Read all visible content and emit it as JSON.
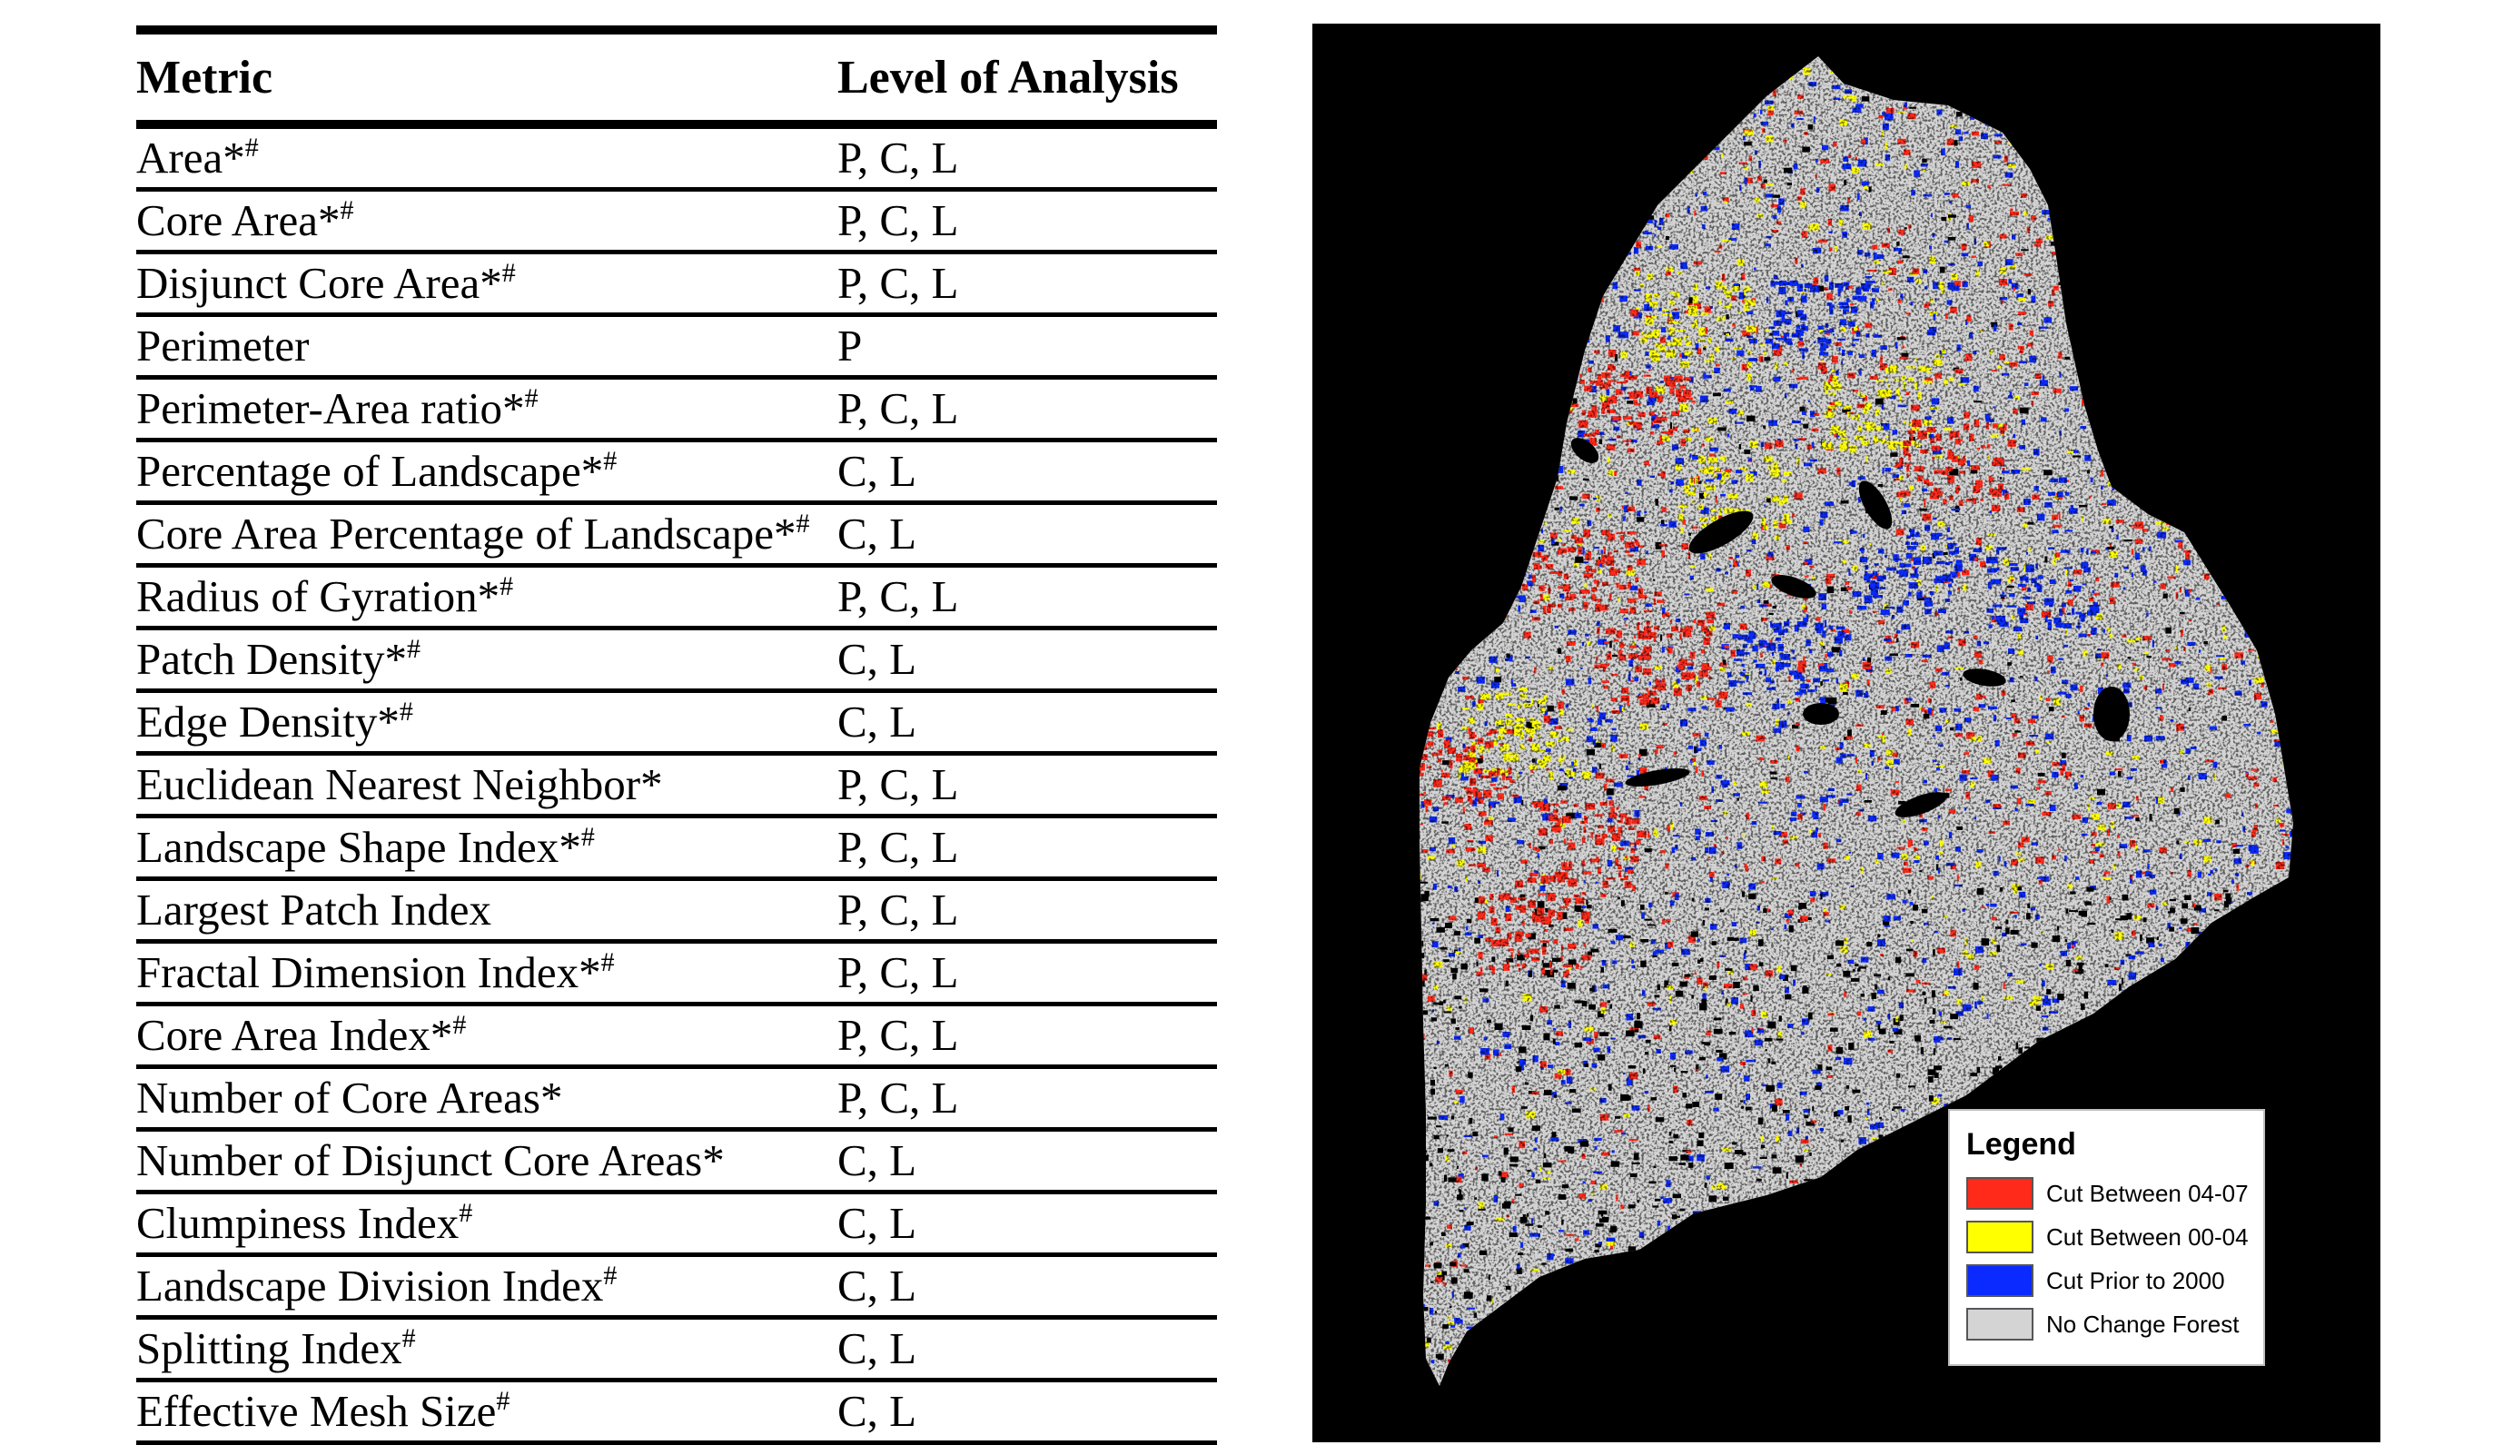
{
  "table": {
    "headers": {
      "metric": "Metric",
      "level": "Level of Analysis"
    },
    "rows": [
      {
        "metric": "Area",
        "mark": "*#",
        "level": "P, C, L"
      },
      {
        "metric": "Core Area",
        "mark": "*#",
        "level": "P, C, L"
      },
      {
        "metric": "Disjunct Core Area",
        "mark": "*#",
        "level": "P, C, L"
      },
      {
        "metric": "Perimeter",
        "mark": "",
        "level": "P"
      },
      {
        "metric": "Perimeter-Area ratio",
        "mark": "*#",
        "level": "P, C, L"
      },
      {
        "metric": "Percentage of Landscape",
        "mark": "*#",
        "level": "C, L"
      },
      {
        "metric": "Core Area Percentage of Landscape",
        "mark": "*#",
        "level": "C, L"
      },
      {
        "metric": "Radius of Gyration",
        "mark": "*#",
        "level": "P, C, L"
      },
      {
        "metric": "Patch Density",
        "mark": "*#",
        "level": "C, L"
      },
      {
        "metric": "Edge Density",
        "mark": "*#",
        "level": "C, L"
      },
      {
        "metric": "Euclidean Nearest Neighbor",
        "mark": "*",
        "level": "P, C, L"
      },
      {
        "metric": "Landscape Shape Index",
        "mark": "*#",
        "level": "P, C, L"
      },
      {
        "metric": "Largest Patch Index",
        "mark": "",
        "level": "P, C, L"
      },
      {
        "metric": "Fractal Dimension Index",
        "mark": "*#",
        "level": "P, C, L"
      },
      {
        "metric": "Core Area Index",
        "mark": "*#",
        "level": "P, C, L"
      },
      {
        "metric": "Number of Core Areas",
        "mark": "*",
        "level": "P, C, L"
      },
      {
        "metric": "Number of Disjunct Core Areas",
        "mark": "*",
        "level": "C, L"
      },
      {
        "metric": "Clumpiness Index",
        "mark": "#",
        "level": "C, L"
      },
      {
        "metric": "Landscape Division Index",
        "mark": "#",
        "level": "C, L"
      },
      {
        "metric": "Splitting Index",
        "mark": "#",
        "level": "C, L"
      },
      {
        "metric": "Effective Mesh Size",
        "mark": "#",
        "level": "C, L"
      }
    ]
  },
  "map": {
    "background_color": "#000000",
    "legend": {
      "title": "Legend",
      "items": [
        {
          "label": "Cut Between 04-07",
          "color": "#ff2a1a"
        },
        {
          "label": "Cut Between 00-04",
          "color": "#ffff00"
        },
        {
          "label": "Cut Prior to 2000",
          "color": "#0a2aff"
        },
        {
          "label": "No Change Forest",
          "color": "#d4d4d4"
        }
      ]
    }
  }
}
